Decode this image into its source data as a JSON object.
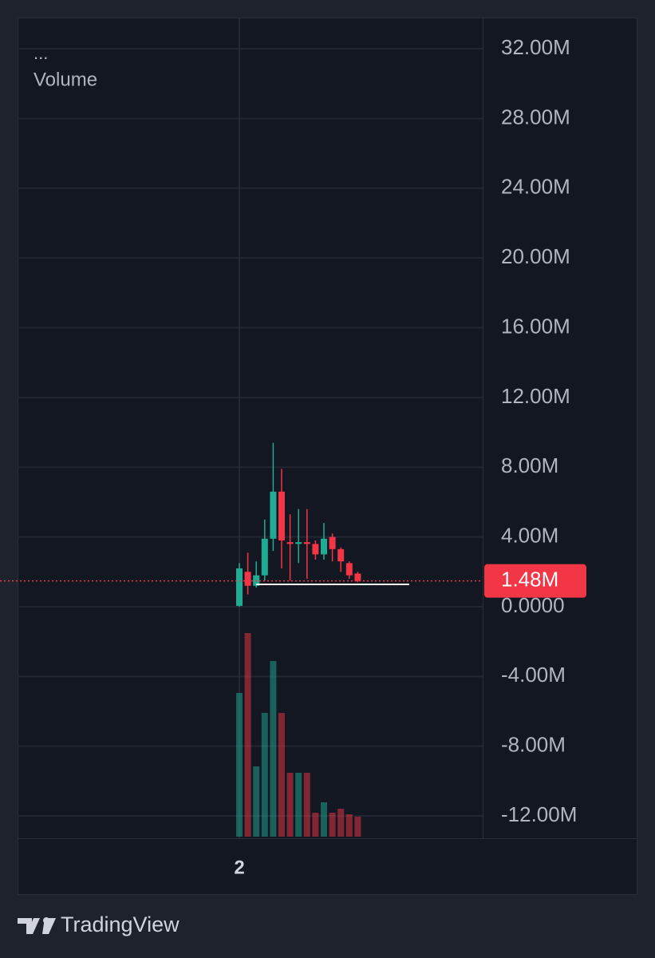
{
  "chart_data": {
    "type": "candlestick",
    "legend": [
      "...",
      "Volume"
    ],
    "categories": [
      "2",
      null,
      null,
      null,
      null,
      null,
      null,
      null,
      null,
      null,
      null,
      null,
      null,
      null,
      null
    ],
    "open": [
      50000,
      2000000,
      1200000,
      1800000,
      3900000,
      6600000,
      3700000,
      3600000,
      3700000,
      3600000,
      3000000,
      4000000,
      3300000,
      2500000,
      1900000
    ],
    "high": [
      2500000,
      3100000,
      2600000,
      5000000,
      9400000,
      7900000,
      5300000,
      5600000,
      5600000,
      3800000,
      4800000,
      4200000,
      3400000,
      2600000,
      2000000
    ],
    "low": [
      0,
      700000,
      1100000,
      1500000,
      3200000,
      2200000,
      1500000,
      2500000,
      1600000,
      2700000,
      2700000,
      2600000,
      2000000,
      1600000,
      1400000
    ],
    "close": [
      2200000,
      1200000,
      1800000,
      3900000,
      6600000,
      3800000,
      3600000,
      3700000,
      3600000,
      3000000,
      3900000,
      3300000,
      2600000,
      1800000,
      1480000
    ],
    "volume": [
      180,
      255,
      88,
      155,
      220,
      155,
      80,
      80,
      80,
      30,
      43,
      30,
      35,
      28,
      25
    ],
    "up_color": "#22ab94",
    "down_color": "#f23645",
    "reference_line": 1280000,
    "last_price": 1480000,
    "last_price_label": "1.48M",
    "ylim": [
      -13280000,
      33790000
    ],
    "yticks": [
      {
        "value": 32000000,
        "label": "32.00M"
      },
      {
        "value": 28000000,
        "label": "28.00M"
      },
      {
        "value": 24000000,
        "label": "24.00M"
      },
      {
        "value": 20000000,
        "label": "20.00M"
      },
      {
        "value": 16000000,
        "label": "16.00M"
      },
      {
        "value": 12000000,
        "label": "12.00M"
      },
      {
        "value": 8000000,
        "label": "8.00M"
      },
      {
        "value": 4000000,
        "label": "4.00M"
      },
      {
        "value": 0,
        "label": "0.0000"
      },
      {
        "value": -4000000,
        "label": "-4.00M"
      },
      {
        "value": -8000000,
        "label": "-8.00M"
      },
      {
        "value": -12000000,
        "label": "-12.00M"
      }
    ],
    "grid": true,
    "brand": "TradingView"
  }
}
